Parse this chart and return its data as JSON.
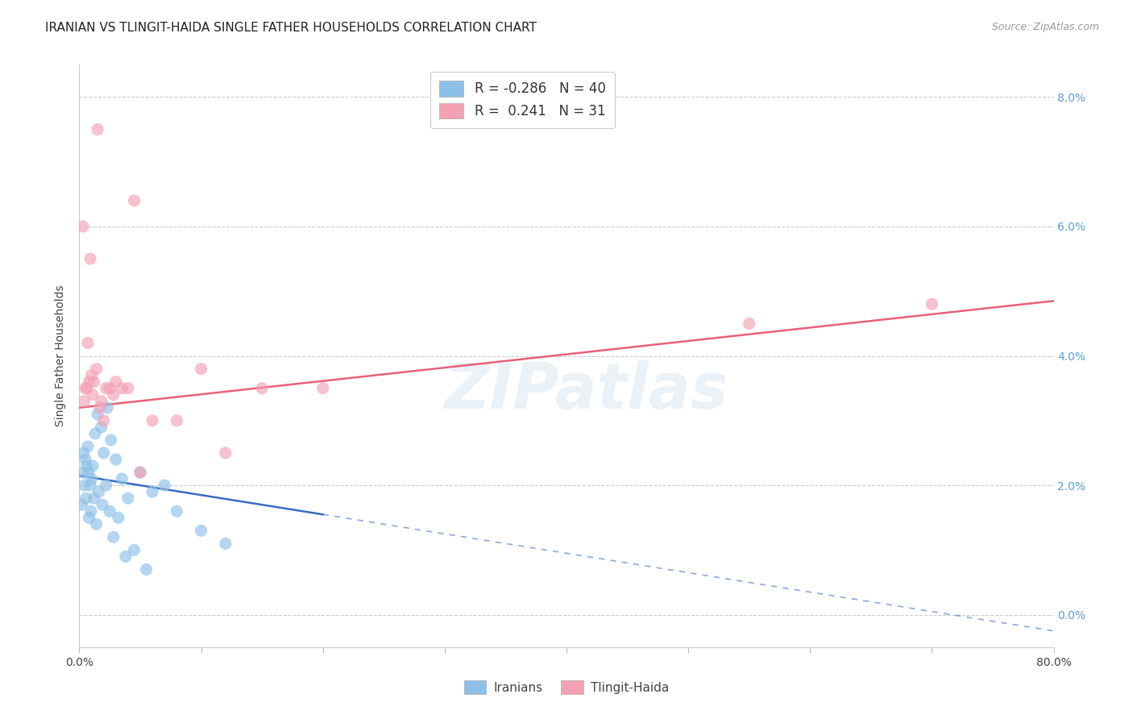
{
  "title": "IRANIAN VS TLINGIT-HAIDA SINGLE FATHER HOUSEHOLDS CORRELATION CHART",
  "source": "Source: ZipAtlas.com",
  "ylabel": "Single Father Households",
  "xlim": [
    0.0,
    80.0
  ],
  "ylim": [
    -0.5,
    8.5
  ],
  "blue_color": "#8dc0e8",
  "pink_color": "#f4a0b5",
  "blue_line_color": "#3a6bc4",
  "pink_line_color": "#e8607a",
  "watermark": "ZIPatlas",
  "legend_label_blue": "R = -0.286   N = 40",
  "legend_label_pink": "R =  0.241   N = 31",
  "bottom_legend_label_blue": "Iranians",
  "bottom_legend_label_pink": "Tlingit-Haida",
  "iran_solid_end": 20.0,
  "tlingit_solid_end": 80.0,
  "iran_line_start_y": 2.15,
  "iran_line_end_y": 1.55,
  "tlingit_line_start_y": 3.2,
  "tlingit_line_end_y": 4.85,
  "iran_x": [
    0.3,
    0.5,
    0.7,
    0.9,
    1.1,
    1.3,
    1.5,
    1.8,
    2.0,
    2.3,
    2.6,
    3.0,
    3.5,
    4.0,
    5.0,
    6.0,
    7.0,
    8.0,
    10.0,
    12.0,
    0.2,
    0.4,
    0.6,
    0.8,
    1.0,
    1.2,
    1.4,
    1.6,
    1.9,
    2.2,
    2.5,
    2.8,
    3.2,
    3.8,
    4.5,
    5.5,
    0.35,
    0.55,
    0.75,
    0.95
  ],
  "iran_y": [
    2.2,
    2.4,
    2.6,
    2.0,
    2.3,
    2.8,
    3.1,
    2.9,
    2.5,
    3.2,
    2.7,
    2.4,
    2.1,
    1.8,
    2.2,
    1.9,
    2.0,
    1.6,
    1.3,
    1.1,
    1.7,
    2.0,
    2.3,
    1.5,
    2.1,
    1.8,
    1.4,
    1.9,
    1.7,
    2.0,
    1.6,
    1.2,
    1.5,
    0.9,
    1.0,
    0.7,
    2.5,
    1.8,
    2.2,
    1.6
  ],
  "tlingit_x": [
    0.3,
    0.6,
    0.9,
    1.2,
    1.5,
    1.8,
    2.2,
    2.8,
    3.5,
    4.5,
    0.4,
    0.8,
    1.1,
    1.4,
    1.7,
    2.0,
    2.5,
    3.0,
    4.0,
    5.0,
    6.0,
    8.0,
    10.0,
    12.0,
    15.0,
    20.0,
    55.0,
    70.0,
    0.5,
    0.7,
    1.0
  ],
  "tlingit_y": [
    6.0,
    3.5,
    5.5,
    3.6,
    7.5,
    3.3,
    3.5,
    3.4,
    3.5,
    6.4,
    3.3,
    3.6,
    3.4,
    3.8,
    3.2,
    3.0,
    3.5,
    3.6,
    3.5,
    2.2,
    3.0,
    3.0,
    3.8,
    2.5,
    3.5,
    3.5,
    4.5,
    4.8,
    3.5,
    4.2,
    3.7
  ]
}
